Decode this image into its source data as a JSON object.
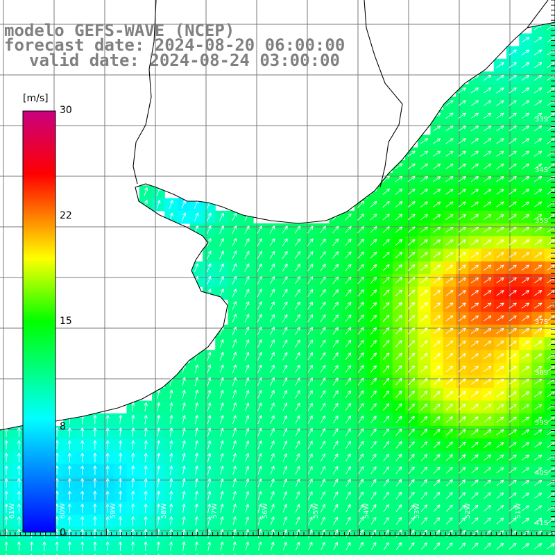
{
  "title": {
    "line1": "modelo GEFS-WAVE (NCEP)",
    "line2": "forecast date: 2024-08-20 06:00:00",
    "line3": "valid date: 2024-08-24 03:00:00"
  },
  "colorbar": {
    "unit": "[m/s]",
    "ticks": [
      "30",
      "22",
      "15",
      "8",
      "0"
    ],
    "tick_values": [
      30,
      22,
      15,
      8,
      0
    ],
    "range": [
      0,
      30
    ],
    "colors": [
      "#0000ff",
      "#00ffff",
      "#00ff00",
      "#ffff00",
      "#ff0000",
      "#c8007f"
    ]
  },
  "axes": {
    "lat_labels": [
      "33S",
      "34S",
      "35S",
      "37S",
      "38S",
      "39S",
      "40S",
      "41S"
    ],
    "lon_labels": [
      "61W",
      "60W",
      "59W",
      "58W",
      "57W",
      "56W",
      "55W",
      "54W",
      "53W",
      "52W",
      "51W"
    ],
    "grid": true
  },
  "chart_data": {
    "type": "heatmap",
    "variable": "wind speed with direction arrows",
    "unit": "m/s",
    "value_range": [
      0,
      30
    ],
    "max_region": "around 36S 51W, ~25 m/s",
    "land_color": "#ffffff"
  }
}
